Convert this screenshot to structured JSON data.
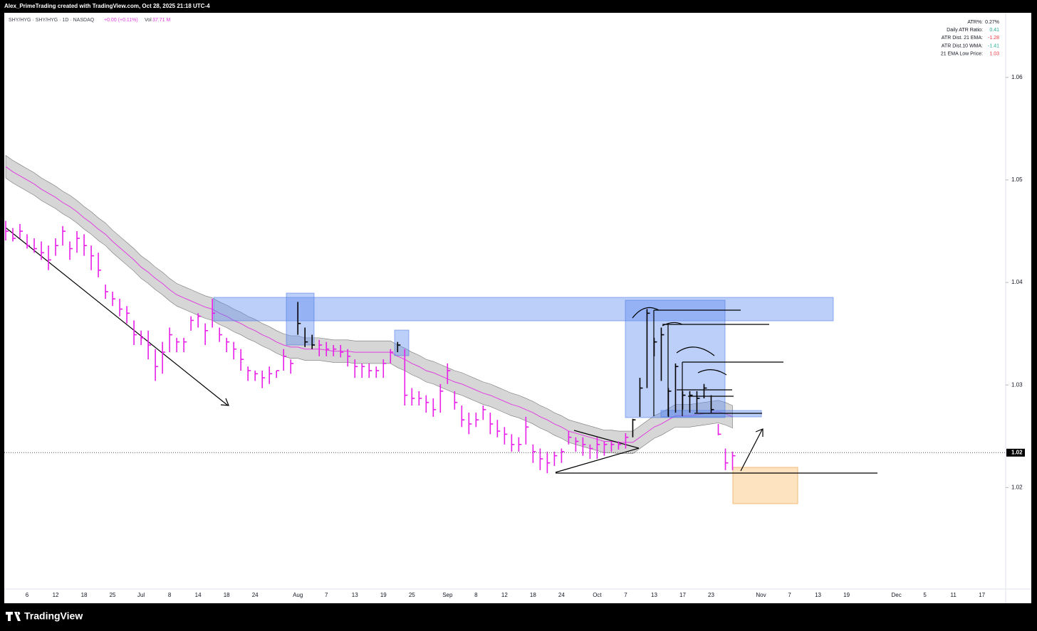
{
  "header": {
    "text": "Alex_PrimeTrading created with TradingView.com, Oct 28, 2025 21:18 UTC-4"
  },
  "legend": {
    "symbol": "SHY/HYG · SHY/HYG · 1D · NASDAQ",
    "change": "+0.00 (+0.11%)",
    "volume_label": "Vol",
    "volume": "37.71 M"
  },
  "info_table": {
    "rows": [
      {
        "label": "ATR%:",
        "value": "0.27%",
        "color": "#131722"
      },
      {
        "label": "Daily ATR Ratio:",
        "value": "0.41",
        "color": "#22ab94"
      },
      {
        "label": "ATR Dist. 21 EMA:",
        "value": "-1.28",
        "color": "#f23645"
      },
      {
        "label": "ATR Dist.10 WMA:",
        "value": "-1.41",
        "color": "#22ab94"
      },
      {
        "label": "21 EMA Low Price:",
        "value": "1.03",
        "color": "#f23645"
      }
    ]
  },
  "footer": {
    "brand": "TradingView"
  },
  "chart_data": {
    "type": "hlc",
    "ylim": [
      1.0101,
      1.0663
    ],
    "yticks": [
      1.02,
      1.03,
      1.04,
      1.05,
      1.06
    ],
    "last_price": {
      "value": 1.0234,
      "label": "1.02"
    },
    "ema_color": "#e040e0",
    "band_color": "#c8c8c8",
    "band_width": 0.0022,
    "categories": [
      null,
      null,
      null,
      "6",
      null,
      null,
      null,
      "12",
      null,
      null,
      null,
      "18",
      null,
      null,
      null,
      "25",
      null,
      null,
      null,
      "Jul",
      null,
      null,
      null,
      "8",
      null,
      null,
      null,
      "14",
      null,
      null,
      null,
      "18",
      null,
      null,
      null,
      "24",
      null,
      null,
      null,
      null,
      null,
      "Aug",
      null,
      null,
      null,
      "7",
      null,
      null,
      null,
      "13",
      null,
      null,
      null,
      "19",
      null,
      null,
      null,
      "25",
      null,
      null,
      null,
      null,
      "Sep",
      null,
      null,
      null,
      "8",
      null,
      null,
      null,
      "12",
      null,
      null,
      null,
      "18",
      null,
      null,
      null,
      "24",
      null,
      null,
      null,
      null,
      "Oct",
      null,
      null,
      null,
      "7",
      null,
      null,
      null,
      "13",
      null,
      null,
      null,
      "17",
      null,
      null,
      null,
      "23",
      null,
      null,
      null,
      null,
      null,
      null,
      "Nov",
      null,
      null,
      null,
      "7",
      null,
      null,
      null,
      "13",
      null,
      null,
      null,
      "19",
      null,
      null,
      null,
      null,
      null,
      null,
      "Dec",
      null,
      null,
      null,
      "5",
      null,
      null,
      null,
      "11",
      null,
      null,
      null,
      "17",
      null,
      null,
      null
    ],
    "high": [
      1.046,
      1.0453,
      1.0457,
      1.0447,
      1.0443,
      1.044,
      1.0436,
      1.0443,
      1.0455,
      1.044,
      1.045,
      1.0447,
      1.0436,
      1.0429,
      1.0398,
      1.0391,
      1.0384,
      1.0377,
      1.0363,
      1.0353,
      1.0353,
      1.0335,
      1.0342,
      1.0356,
      1.0346,
      1.0346,
      1.0367,
      1.037,
      1.036,
      1.0384,
      1.0356,
      1.0346,
      1.0342,
      1.0335,
      1.0318,
      1.0314,
      1.0314,
      1.0318,
      1.0314,
      1.0335,
      1.0325,
      1.0381,
      1.0356,
      1.0349,
      1.0344,
      1.0342,
      1.0339,
      1.0339,
      1.0335,
      1.0325,
      1.0321,
      1.0321,
      1.0318,
      1.0325,
      1.0335,
      1.0342,
      1.0335,
      1.0297,
      1.0294,
      1.029,
      1.0287,
      1.0301,
      1.0321,
      1.0294,
      1.028,
      1.0273,
      1.0273,
      1.028,
      1.0273,
      1.0266,
      1.0259,
      1.0252,
      1.0249,
      1.0269,
      1.0242,
      1.0238,
      1.0235,
      1.0235,
      1.0238,
      1.0255,
      1.0249,
      1.0249,
      1.0242,
      1.0249,
      1.0245,
      1.0245,
      1.0245,
      1.0253,
      1.0267,
      1.0307,
      1.0374,
      1.0346,
      1.0356,
      1.0297,
      1.0321,
      1.0294,
      1.0294,
      1.0294,
      1.0301,
      1.029,
      1.0262,
      1.0238,
      1.0235,
      null,
      null,
      null,
      null,
      null,
      null,
      null,
      null,
      null,
      null,
      null,
      null,
      null,
      null,
      null,
      null,
      null,
      null,
      null,
      null,
      null,
      null,
      null,
      null,
      null,
      null,
      null,
      null,
      null,
      null,
      null,
      null,
      null,
      null,
      null,
      null,
      null,
      null
    ],
    "low": [
      1.0441,
      1.044,
      1.0443,
      1.0433,
      1.0429,
      1.0422,
      1.0412,
      1.0426,
      1.0436,
      1.0422,
      1.0429,
      1.0426,
      1.0412,
      1.0405,
      1.0384,
      1.0377,
      1.0367,
      1.036,
      1.0339,
      1.0339,
      1.0325,
      1.0304,
      1.0311,
      1.0332,
      1.0332,
      1.0332,
      1.0353,
      1.0356,
      1.0339,
      1.0356,
      1.0342,
      1.0332,
      1.0325,
      1.0314,
      1.0304,
      1.0304,
      1.0297,
      1.0301,
      1.0307,
      1.0314,
      1.0311,
      1.0349,
      1.0337,
      1.0335,
      1.0328,
      1.0328,
      1.0328,
      1.0327,
      1.0318,
      1.0307,
      1.0307,
      1.0307,
      1.0307,
      1.0307,
      1.0321,
      1.0332,
      1.028,
      1.028,
      1.028,
      1.0273,
      1.0269,
      1.0273,
      1.0301,
      1.0276,
      1.0259,
      1.0252,
      1.0259,
      1.0266,
      1.0252,
      1.0249,
      1.0242,
      1.0235,
      1.0235,
      1.0242,
      1.0224,
      1.0217,
      1.0214,
      1.0221,
      1.0224,
      1.0242,
      1.0235,
      1.0231,
      1.0228,
      1.0228,
      1.0231,
      1.0235,
      1.0237,
      1.0238,
      1.0249,
      1.0269,
      1.0297,
      1.0328,
      1.0304,
      1.0269,
      1.0273,
      1.0276,
      1.0273,
      1.0273,
      1.0287,
      1.0273,
      1.0251,
      1.0217,
      1.0217,
      null,
      null,
      null,
      null,
      null,
      null,
      null,
      null,
      null,
      null,
      null,
      null,
      null,
      null,
      null,
      null,
      null,
      null,
      null,
      null,
      null,
      null,
      null,
      null,
      null,
      null,
      null,
      null,
      null,
      null,
      null,
      null,
      null,
      null,
      null,
      null,
      null,
      null
    ],
    "close": [
      1.045,
      1.0443,
      1.045,
      1.0436,
      1.0433,
      1.0429,
      1.0422,
      1.0436,
      1.045,
      1.0433,
      1.0443,
      1.0436,
      1.0426,
      1.0412,
      1.0391,
      1.0384,
      1.0374,
      1.037,
      1.0349,
      1.0346,
      1.0339,
      1.0318,
      1.0332,
      1.0349,
      1.0342,
      1.0342,
      1.0363,
      1.0367,
      1.0353,
      1.037,
      1.0349,
      1.0342,
      1.0335,
      1.0325,
      1.0314,
      1.0311,
      1.0307,
      1.0311,
      1.0314,
      1.0328,
      1.0321,
      1.036,
      1.0342,
      1.0339,
      1.0339,
      1.0335,
      1.0335,
      1.0332,
      1.0328,
      1.0318,
      1.0318,
      1.0314,
      1.0314,
      1.0321,
      1.0332,
      1.0339,
      1.029,
      1.0287,
      1.0287,
      1.0283,
      1.0276,
      1.0294,
      1.0314,
      1.0283,
      1.0266,
      1.0262,
      1.0266,
      1.0276,
      1.0262,
      1.0255,
      1.0252,
      1.0242,
      1.0242,
      1.0259,
      1.0235,
      1.0228,
      1.0224,
      1.0231,
      1.0235,
      1.0249,
      1.0245,
      1.0242,
      1.0238,
      1.0242,
      1.0242,
      1.0242,
      1.0242,
      1.0249,
      1.0266,
      1.0297,
      1.037,
      1.0342,
      1.0349,
      1.0294,
      1.0318,
      1.029,
      1.029,
      1.0287,
      1.0297,
      1.0276,
      1.0252,
      1.0224,
      1.0231,
      null,
      null,
      null,
      null,
      null,
      null,
      null,
      null,
      null,
      null,
      null,
      null,
      null,
      null,
      null,
      null,
      null,
      null,
      null,
      null,
      null,
      null,
      null,
      null,
      null,
      null,
      null,
      null,
      null,
      null,
      null,
      null,
      null,
      null,
      null,
      null,
      null,
      null
    ],
    "ema": [
      1.0513,
      1.0508,
      1.0504,
      1.05,
      1.0496,
      1.0491,
      1.0487,
      1.0483,
      1.0478,
      1.0474,
      1.0469,
      1.0463,
      1.0458,
      1.0452,
      1.0447,
      1.044,
      1.0434,
      1.0428,
      1.0422,
      1.0415,
      1.041,
      1.0404,
      1.0399,
      1.0393,
      1.0388,
      1.0385,
      1.0382,
      1.0379,
      1.0376,
      1.0374,
      1.037,
      1.0367,
      1.0363,
      1.036,
      1.0356,
      1.0353,
      1.0349,
      1.0346,
      1.0342,
      1.0339,
      1.0337,
      1.0337,
      1.0335,
      1.0335,
      1.0335,
      1.0334,
      1.0333,
      1.0333,
      1.0333,
      1.0332,
      1.0332,
      1.0332,
      1.0332,
      1.0332,
      1.0332,
      1.0328,
      1.0325,
      1.0321,
      1.0318,
      1.0314,
      1.0312,
      1.0309,
      1.0306,
      1.0303,
      1.0301,
      1.0298,
      1.0295,
      1.0292,
      1.029,
      1.0287,
      1.0284,
      1.0281,
      1.0279,
      1.0276,
      1.0273,
      1.0269,
      1.0266,
      1.0262,
      1.0259,
      1.0255,
      1.0253,
      1.0251,
      1.0249,
      1.0247,
      1.0245,
      1.0245,
      1.0244,
      1.0244,
      1.0244,
      1.0249,
      1.0254,
      1.0259,
      1.0262,
      1.0266,
      1.027,
      1.027,
      1.027,
      1.0271,
      1.0272,
      1.0273,
      1.0274,
      1.0272,
      1.0269,
      null,
      null,
      null,
      null,
      null,
      null,
      null,
      null,
      null,
      null,
      null,
      null,
      null,
      null,
      null,
      null,
      null,
      null,
      null,
      null,
      null,
      null,
      null,
      null,
      null,
      null,
      null,
      null,
      null,
      null,
      null,
      null,
      null,
      null,
      null,
      null,
      null,
      null
    ],
    "colors": [
      "#e91ee9",
      "#e91ee9",
      "#e91ee9",
      "#e91ee9",
      "#e91ee9",
      "#e91ee9",
      "#e91ee9",
      "#e91ee9",
      "#e91ee9",
      "#e91ee9",
      "#e91ee9",
      "#e91ee9",
      "#e91ee9",
      "#e91ee9",
      "#e91ee9",
      "#e91ee9",
      "#e91ee9",
      "#e91ee9",
      "#e91ee9",
      "#e91ee9",
      "#e91ee9",
      "#e91ee9",
      "#e91ee9",
      "#e91ee9",
      "#e91ee9",
      "#e91ee9",
      "#e91ee9",
      "#e91ee9",
      "#e91ee9",
      "#e91ee9",
      "#e91ee9",
      "#e91ee9",
      "#e91ee9",
      "#e91ee9",
      "#e91ee9",
      "#e91ee9",
      "#e91ee9",
      "#e91ee9",
      "#e91ee9",
      "#e91ee9",
      "#e91ee9",
      "#000000",
      "#000000",
      "#000000",
      "#e91ee9",
      "#e91ee9",
      "#e91ee9",
      "#e91ee9",
      "#e91ee9",
      "#e91ee9",
      "#e91ee9",
      "#e91ee9",
      "#e91ee9",
      "#e91ee9",
      "#e91ee9",
      "#000000",
      "#e91ee9",
      "#e91ee9",
      "#e91ee9",
      "#e91ee9",
      "#e91ee9",
      "#e91ee9",
      "#e91ee9",
      "#e91ee9",
      "#e91ee9",
      "#e91ee9",
      "#e91ee9",
      "#e91ee9",
      "#e91ee9",
      "#e91ee9",
      "#e91ee9",
      "#e91ee9",
      "#e91ee9",
      "#e91ee9",
      "#e91ee9",
      "#e91ee9",
      "#e91ee9",
      "#e91ee9",
      "#e91ee9",
      "#e91ee9",
      "#e91ee9",
      "#e91ee9",
      "#e91ee9",
      "#e91ee9",
      "#e91ee9",
      "#e91ee9",
      "#e91ee9",
      "#e91ee9",
      "#000000",
      "#000000",
      "#000000",
      "#000000",
      "#000000",
      "#000000",
      "#000000",
      "#000000",
      "#000000",
      "#000000",
      "#000000",
      "#000000",
      "#e91ee9",
      "#e91ee9",
      "#e91ee9",
      null,
      null,
      null,
      null,
      null,
      null,
      null,
      null,
      null,
      null,
      null,
      null,
      null,
      null,
      null,
      null,
      null,
      null,
      null,
      null,
      null,
      null,
      null,
      null,
      null,
      null,
      null,
      null,
      null,
      null,
      null,
      null,
      null,
      null,
      null,
      null,
      null,
      null
    ]
  }
}
